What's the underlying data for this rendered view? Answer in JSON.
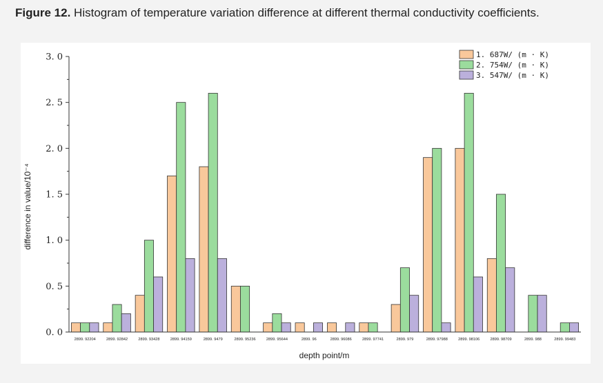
{
  "figure": {
    "caption_label": "Figure 12.",
    "caption_text": " Histogram of temperature variation difference at different thermal conductivity coefficients."
  },
  "colors": {
    "series": [
      "#f9c89b",
      "#9bdc9d",
      "#bbb0dc"
    ],
    "stroke": "#333333",
    "panel": "#ffffff",
    "page": "#f3f3f3"
  },
  "chart_data": {
    "type": "bar",
    "xlabel": "depth point/m",
    "ylabel": "difference in value/10⁻⁴",
    "ylim": [
      0,
      3.0
    ],
    "yticks": [
      "0. 0",
      "0. 5",
      "1. 0",
      "1. 5",
      "2. 0",
      "2. 5",
      "3. 0"
    ],
    "legend_position": "top-right",
    "grid": false,
    "categories": [
      "2899. 92204",
      "2899. 92842",
      "2899. 93428",
      "2899. 94159",
      "2899. 9479",
      "2899. 95236",
      "2899. 95644",
      "2899. 96",
      "2899. 96086",
      "2899. 97741",
      "2899. 979",
      "2899. 97988",
      "2899. 98106",
      "2899. 98709",
      "2899. 988",
      "2899. 99483"
    ],
    "series": [
      {
        "name": "1. 687W/ (m · K)",
        "values": [
          0.1,
          0.1,
          0.4,
          1.7,
          1.8,
          0.5,
          0.1,
          0.1,
          0.1,
          0.1,
          0.3,
          1.9,
          2.0,
          0.8,
          0.0,
          0.0
        ]
      },
      {
        "name": "2. 754W/ (m · K)",
        "values": [
          0.1,
          0.3,
          1.0,
          2.5,
          2.6,
          0.5,
          0.2,
          0.0,
          0.0,
          0.1,
          0.7,
          2.0,
          2.6,
          1.5,
          0.4,
          0.1
        ]
      },
      {
        "name": "3. 547W/ (m · K)",
        "values": [
          0.1,
          0.2,
          0.6,
          0.8,
          0.8,
          0.0,
          0.1,
          0.1,
          0.1,
          0.0,
          0.4,
          0.1,
          0.6,
          0.7,
          0.4,
          0.1
        ]
      }
    ]
  }
}
